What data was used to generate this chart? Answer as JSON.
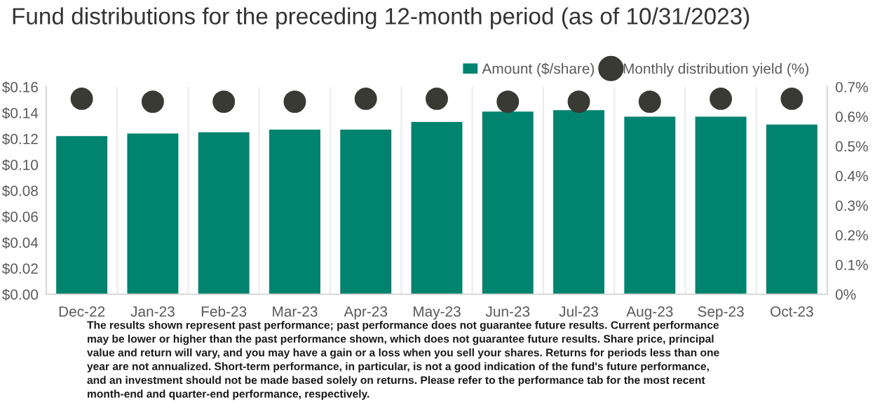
{
  "chart_data": {
    "type": "bar",
    "title": "Fund distributions for the preceding 12-month period (as of 10/31/2023)",
    "categories": [
      "Dec-22",
      "Jan-23",
      "Feb-23",
      "Mar-23",
      "Apr-23",
      "May-23",
      "Jun-23",
      "Jul-23",
      "Aug-23",
      "Sep-23",
      "Oct-23"
    ],
    "series": [
      {
        "name": "Amount ($/share)",
        "type": "bar",
        "color": "#00836f",
        "values": [
          0.122,
          0.124,
          0.125,
          0.127,
          0.127,
          0.133,
          0.141,
          0.142,
          0.137,
          0.137,
          0.131
        ]
      },
      {
        "name": "Monthly distribution yield (%)",
        "type": "scatter",
        "axis": "y2",
        "color": "#3a3a35",
        "values": [
          0.66,
          0.65,
          0.65,
          0.65,
          0.66,
          0.66,
          0.65,
          0.65,
          0.65,
          0.66,
          0.66
        ]
      }
    ],
    "ylim": [
      0,
      0.16
    ],
    "yticks": [
      {
        "value": 0,
        "label": "$0.00"
      },
      {
        "value": 0.02,
        "label": "$0.02"
      },
      {
        "value": 0.04,
        "label": "$0.04"
      },
      {
        "value": 0.06,
        "label": "$0.06"
      },
      {
        "value": 0.08,
        "label": "$0.08"
      },
      {
        "value": 0.1,
        "label": "$0.10"
      },
      {
        "value": 0.12,
        "label": "$0.12"
      },
      {
        "value": 0.14,
        "label": "$0.14"
      },
      {
        "value": 0.16,
        "label": "$0.16"
      }
    ],
    "y2lim": [
      0,
      0.7
    ],
    "y2ticks": [
      {
        "value": 0,
        "label": "0%"
      },
      {
        "value": 0.1,
        "label": "0.1%"
      },
      {
        "value": 0.2,
        "label": "0.2%"
      },
      {
        "value": 0.3,
        "label": "0.3%"
      },
      {
        "value": 0.4,
        "label": "0.4%"
      },
      {
        "value": 0.5,
        "label": "0.5%"
      },
      {
        "value": 0.6,
        "label": "0.6%"
      },
      {
        "value": 0.7,
        "label": "0.7%"
      }
    ],
    "grid": "x",
    "legend": "top right",
    "marker": "circle",
    "annotations": [
      "The results shown represent past performance; past performance does not guarantee future results. Current performance\nmay be lower or higher than the past performance shown, which does not guarantee future results. Share price, principal\nvalue and return will vary, and you may have a gain or a loss when you sell your shares. Returns for periods less than one\nyear are not annualized. Short-term performance, in particular, is not a good indication of the fund's future performance,\nand an investment should not be made based solely on returns. Please refer to the performance tab for the most recent\nmonth-end and quarter-end performance, respectively."
    ]
  }
}
